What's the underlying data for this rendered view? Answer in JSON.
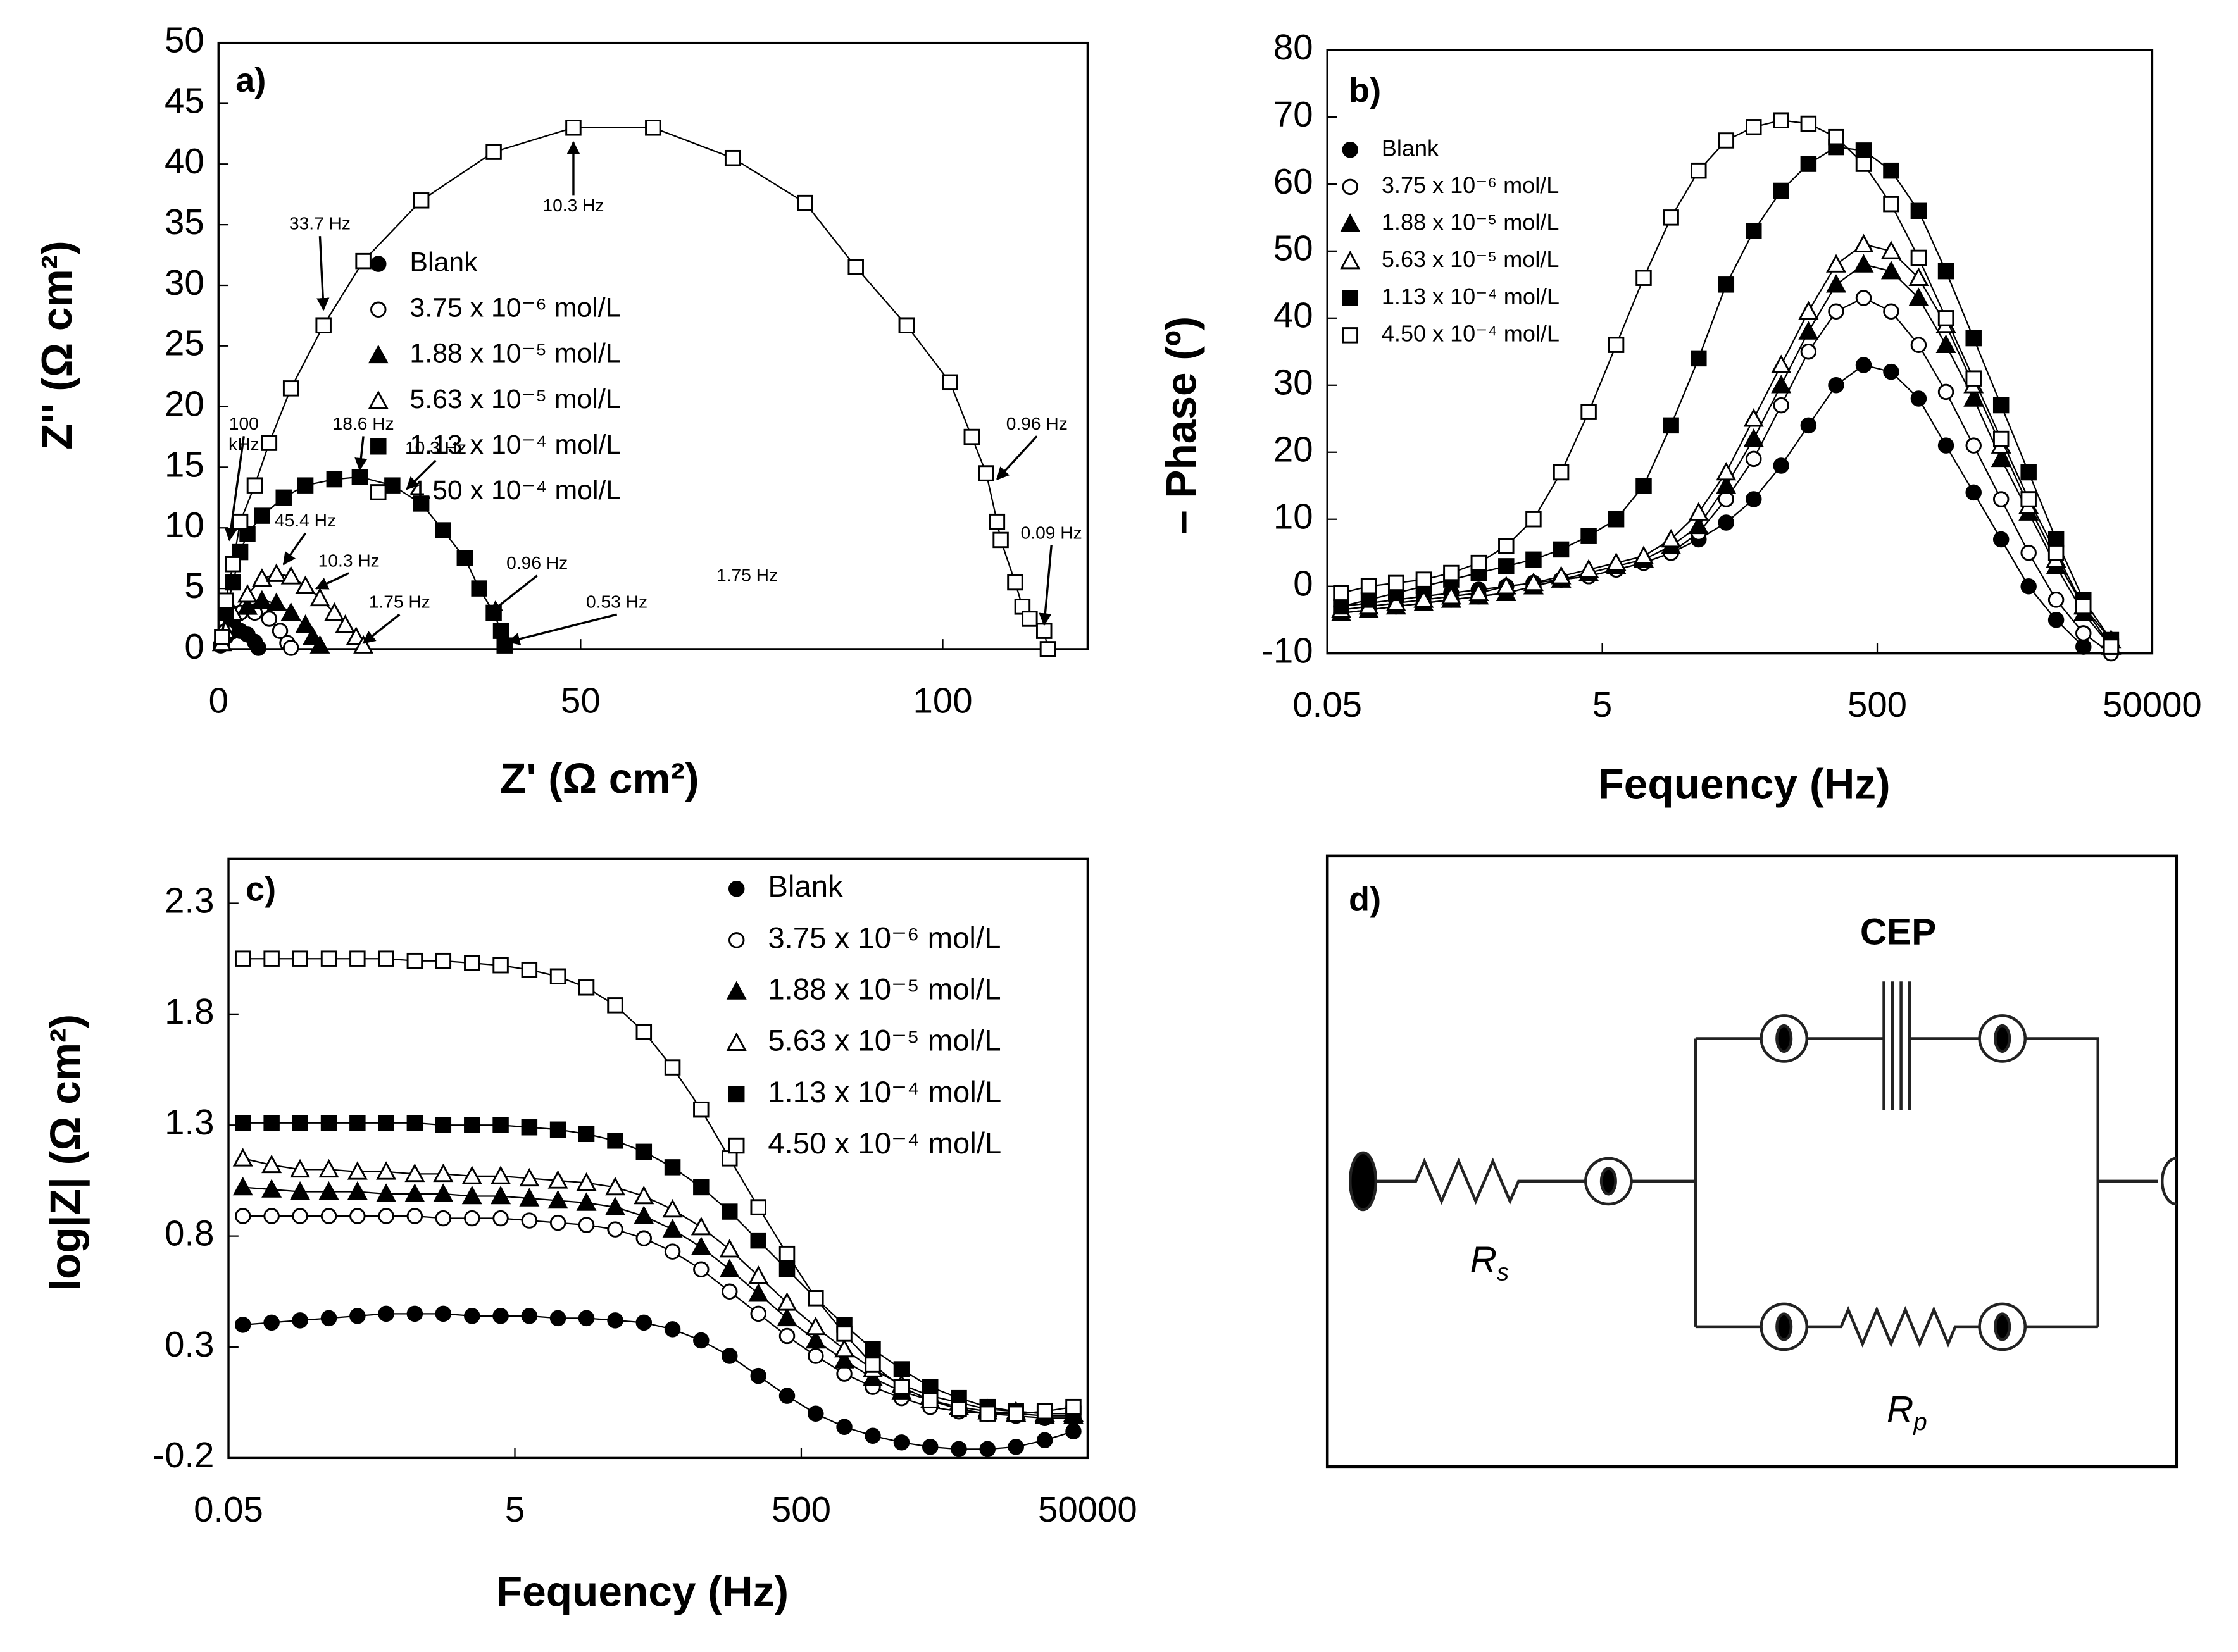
{
  "chart_data": [
    {
      "type": "scatter",
      "label": "a)",
      "xlabel": "Z' (Ω cm²)",
      "ylabel": "Z'' (Ω cm²)",
      "xlim": [
        0,
        120
      ],
      "xticks": [
        0,
        50,
        100
      ],
      "ylim": [
        0,
        50
      ],
      "yticks": [
        0,
        5,
        10,
        15,
        20,
        25,
        30,
        35,
        40,
        45,
        50
      ],
      "legend": "center",
      "series": [
        {
          "name": "Blank",
          "marker": "filled-circle",
          "color": "#000000",
          "x": [
            0.3,
            1,
            2,
            3,
            4,
            5,
            5.5
          ],
          "values": [
            0.3,
            1,
            1.5,
            1.5,
            1.2,
            0.6,
            0.1
          ]
        },
        {
          "name": "3.75 x 10⁻⁶ mol/L",
          "marker": "open-circle",
          "color": "#000000",
          "x": [
            0.5,
            1,
            2,
            3,
            5,
            7,
            8.5,
            9.5,
            10
          ],
          "values": [
            0.5,
            1.5,
            2.5,
            3,
            3,
            2.5,
            1.5,
            0.5,
            0.1
          ]
        },
        {
          "name": "1.88 x 10⁻⁵ mol/L",
          "marker": "filled-triangle",
          "color": "#000000",
          "x": [
            0.5,
            1,
            2,
            4,
            6,
            8,
            10,
            12,
            13,
            14
          ],
          "values": [
            0.5,
            1.5,
            2.5,
            3.5,
            4,
            3.8,
            3,
            2,
            1,
            0.3
          ]
        },
        {
          "name": "5.63 x 10⁻⁵ mol/L",
          "marker": "open-triangle",
          "color": "#000000",
          "x": [
            0.5,
            1,
            2,
            4,
            6,
            8,
            10,
            12,
            14,
            16,
            17.5,
            19,
            20
          ],
          "values": [
            0.5,
            1.5,
            3,
            4.5,
            5.8,
            6.2,
            6,
            5.2,
            4.2,
            3,
            2,
            1,
            0.3
          ]
        },
        {
          "name": "1.13 x 10⁻⁴ mol/L",
          "marker": "filled-square",
          "color": "#000000",
          "x": [
            0.5,
            1,
            2,
            3,
            4,
            6,
            9,
            12,
            16,
            19.5,
            24,
            28,
            31,
            34,
            36,
            38,
            39,
            39.5
          ],
          "values": [
            1,
            3,
            5.5,
            8,
            9.5,
            11,
            12.5,
            13.5,
            14,
            14.2,
            13.5,
            12,
            9.8,
            7.5,
            5,
            3,
            1.5,
            0.3
          ]
        },
        {
          "name": "4.50 x 10⁻⁴ mol/L",
          "marker": "open-square",
          "color": "#000000",
          "x": [
            0.5,
            1,
            2,
            3,
            5,
            7,
            10,
            14.5,
            20,
            28,
            38,
            49,
            60,
            71,
            81,
            88,
            95,
            101,
            104,
            106,
            107.5,
            108,
            110,
            111,
            112,
            114,
            114.5
          ],
          "values": [
            1,
            4,
            7,
            10.5,
            13.5,
            17,
            21.5,
            26.7,
            32,
            37,
            41,
            43,
            43,
            40.5,
            36.8,
            31.5,
            26.7,
            22,
            17.5,
            14.5,
            10.5,
            9,
            5.5,
            3.5,
            2.5,
            1.5,
            0
          ]
        }
      ],
      "annotations": [
        {
          "text": "10.3  Hz",
          "x": 49,
          "y": 36.5,
          "arrow_to": [
            49,
            41.8
          ]
        },
        {
          "text": "33.7  Hz",
          "x": 14,
          "y": 35,
          "arrow_to": [
            14.5,
            28
          ]
        },
        {
          "text": "100",
          "x": 3.5,
          "y": 18.5,
          "arrow_to": [
            1.5,
            9
          ]
        },
        {
          "text": "kHz",
          "x": 3.5,
          "y": 16.8
        },
        {
          "text": "18.6  Hz",
          "x": 20,
          "y": 18.5,
          "arrow_to": [
            19.5,
            14.8
          ]
        },
        {
          "text": "10.3  Hz",
          "x": 30,
          "y": 16.5,
          "arrow_to": [
            26,
            13.2
          ]
        },
        {
          "text": "45.4  Hz",
          "x": 12,
          "y": 10.5,
          "arrow_to": [
            9,
            7
          ]
        },
        {
          "text": "10.3  Hz",
          "x": 18,
          "y": 7.2,
          "arrow_to": [
            13.5,
            5
          ]
        },
        {
          "text": "1.75  Hz",
          "x": 25,
          "y": 3.8,
          "arrow_to": [
            20,
            0.5
          ]
        },
        {
          "text": "0.96  Hz",
          "x": 44,
          "y": 7,
          "arrow_to": [
            37.5,
            3
          ]
        },
        {
          "text": "0.53  Hz",
          "x": 55,
          "y": 3.8,
          "arrow_to": [
            40,
            0.6
          ]
        },
        {
          "text": "1.75  Hz",
          "x": 73,
          "y": 6
        },
        {
          "text": "0.96  Hz",
          "x": 113,
          "y": 18.5,
          "arrow_to": [
            107.5,
            14
          ]
        },
        {
          "text": "0.09  Hz",
          "x": 115,
          "y": 9.5,
          "arrow_to": [
            114,
            2
          ]
        }
      ]
    },
    {
      "type": "scatter",
      "label": "b)",
      "xlabel": "Fequency (Hz)",
      "ylabel": "– Phase (º)",
      "xscale": "log",
      "xlim": [
        0.05,
        50000
      ],
      "xticks": [
        0.05,
        5,
        500,
        50000
      ],
      "ylim": [
        -10,
        80
      ],
      "yticks": [
        -10,
        0,
        10,
        20,
        30,
        40,
        50,
        60,
        70,
        80
      ],
      "legend": "upper left",
      "x": [
        0.063,
        0.1,
        0.158,
        0.251,
        0.398,
        0.631,
        1,
        1.58,
        2.51,
        3.98,
        6.31,
        10,
        15.8,
        25.1,
        39.8,
        63.1,
        100,
        158,
        251,
        398,
        631,
        1000,
        1580,
        2510,
        3980,
        6310,
        10000,
        15800,
        25100
      ],
      "series": [
        {
          "name": "Blank",
          "marker": "filled-circle",
          "color": "#000000",
          "values": [
            -3,
            -2.5,
            -2,
            -1.5,
            -1,
            -0.5,
            0,
            0.5,
            1,
            1.5,
            2.5,
            3.5,
            5,
            7,
            9.5,
            13,
            18,
            24,
            30,
            33,
            32,
            28,
            21,
            14,
            7,
            0,
            -5,
            -9,
            null
          ]
        },
        {
          "name": "3.75 x 10⁻⁶ mol/L",
          "marker": "open-circle",
          "color": "#000000",
          "values": [
            -4,
            -3.5,
            -3,
            -2.5,
            -2,
            -1.5,
            -1,
            0,
            1,
            1.5,
            2.5,
            3.5,
            5,
            8,
            13,
            19,
            27,
            35,
            41,
            43,
            41,
            36,
            29,
            21,
            13,
            5,
            -2,
            -7,
            -10
          ]
        },
        {
          "name": "1.88 x 10⁻⁵ mol/L",
          "marker": "filled-triangle",
          "color": "#000000",
          "values": [
            -4,
            -3.5,
            -3,
            -2.5,
            -2,
            -1.5,
            -1,
            0,
            1,
            2,
            3,
            4,
            6,
            9,
            15,
            22,
            30,
            38,
            45,
            48,
            47,
            43,
            36,
            28,
            19,
            11,
            3,
            -4,
            -9
          ]
        },
        {
          "name": "5.63 x 10⁻⁵ mol/L",
          "marker": "open-triangle",
          "color": "#000000",
          "values": [
            -3.5,
            -3,
            -2.5,
            -2,
            -1.5,
            -1,
            0,
            0.5,
            1.5,
            2.5,
            3.5,
            4.5,
            7,
            11,
            17,
            25,
            33,
            41,
            48,
            51,
            50,
            46,
            39,
            30,
            21,
            12,
            4,
            -3,
            -8
          ]
        },
        {
          "name": "1.13 x 10⁻⁴ mol/L",
          "marker": "filled-square",
          "color": "#000000",
          "values": [
            -3,
            -2,
            -1,
            0,
            1,
            2,
            3,
            4,
            5.5,
            7.5,
            10,
            15,
            24,
            34,
            45,
            53,
            59,
            63,
            65.5,
            65,
            62,
            56,
            47,
            37,
            27,
            17,
            7,
            -2,
            -8
          ]
        },
        {
          "name": "4.50 x 10⁻⁴ mol/L",
          "marker": "open-square",
          "color": "#000000",
          "values": [
            -1,
            0,
            0.5,
            1,
            2,
            3.5,
            6,
            10,
            17,
            26,
            36,
            46,
            55,
            62,
            66.5,
            68.5,
            69.5,
            69,
            67,
            63,
            57,
            49,
            40,
            31,
            22,
            13,
            5,
            -3,
            -9
          ]
        }
      ]
    },
    {
      "type": "scatter",
      "label": "c)",
      "xlabel": "Fequency (Hz)",
      "ylabel": "log|Z|  (Ω cm²)",
      "xscale": "log",
      "xlim": [
        0.05,
        50000
      ],
      "xticks": [
        0.05,
        5,
        500,
        50000
      ],
      "ylim": [
        -0.2,
        2.5
      ],
      "yticks": [
        -0.2,
        0.3,
        0.8,
        1.3,
        1.8,
        2.3
      ],
      "legend": "upper right",
      "x": [
        0.063,
        0.1,
        0.158,
        0.251,
        0.398,
        0.631,
        1,
        1.58,
        2.51,
        3.98,
        6.31,
        10,
        15.8,
        25.1,
        39.8,
        63.1,
        100,
        158,
        251,
        398,
        631,
        1000,
        1580,
        2510,
        3980,
        6310,
        10000,
        15800,
        25100,
        39800
      ],
      "series": [
        {
          "name": "Blank",
          "marker": "filled-circle",
          "color": "#000000",
          "values": [
            0.4,
            0.41,
            0.42,
            0.43,
            0.44,
            0.45,
            0.45,
            0.45,
            0.44,
            0.44,
            0.44,
            0.43,
            0.43,
            0.42,
            0.41,
            0.38,
            0.33,
            0.26,
            0.17,
            0.08,
            0.0,
            -0.06,
            -0.1,
            -0.13,
            -0.15,
            -0.16,
            -0.16,
            -0.15,
            -0.12,
            -0.08
          ]
        },
        {
          "name": "3.75 x 10⁻⁶ mol/L",
          "marker": "open-circle",
          "color": "#000000",
          "values": [
            0.89,
            0.89,
            0.89,
            0.89,
            0.89,
            0.89,
            0.89,
            0.88,
            0.88,
            0.88,
            0.87,
            0.86,
            0.85,
            0.83,
            0.79,
            0.73,
            0.65,
            0.55,
            0.45,
            0.35,
            0.26,
            0.18,
            0.12,
            0.07,
            0.03,
            0.01,
            0.0,
            -0.01,
            -0.02,
            -0.02
          ]
        },
        {
          "name": "1.88 x 10⁻⁵ mol/L",
          "marker": "filled-triangle",
          "color": "#000000",
          "values": [
            1.02,
            1.01,
            1.0,
            1.0,
            1.0,
            0.99,
            0.99,
            0.99,
            0.98,
            0.98,
            0.97,
            0.96,
            0.95,
            0.93,
            0.89,
            0.83,
            0.75,
            0.65,
            0.54,
            0.43,
            0.33,
            0.24,
            0.16,
            0.1,
            0.06,
            0.03,
            0.01,
            0.0,
            -0.01,
            -0.01
          ]
        },
        {
          "name": "5.63 x 10⁻⁵ mol/L",
          "marker": "open-triangle",
          "color": "#000000",
          "values": [
            1.15,
            1.12,
            1.1,
            1.1,
            1.09,
            1.09,
            1.08,
            1.08,
            1.07,
            1.07,
            1.06,
            1.05,
            1.04,
            1.02,
            0.98,
            0.92,
            0.84,
            0.74,
            0.62,
            0.5,
            0.39,
            0.29,
            0.2,
            0.13,
            0.08,
            0.05,
            0.02,
            0.01,
            0.0,
            0.0
          ]
        },
        {
          "name": "1.13 x 10⁻⁴ mol/L",
          "marker": "filled-square",
          "color": "#000000",
          "values": [
            1.31,
            1.31,
            1.31,
            1.31,
            1.31,
            1.31,
            1.31,
            1.3,
            1.3,
            1.3,
            1.29,
            1.28,
            1.26,
            1.23,
            1.18,
            1.11,
            1.02,
            0.91,
            0.78,
            0.65,
            0.52,
            0.4,
            0.29,
            0.2,
            0.12,
            0.07,
            0.03,
            0.01,
            0.0,
            0.0
          ]
        },
        {
          "name": "4.50 x 10⁻⁴ mol/L",
          "marker": "open-square",
          "color": "#000000",
          "values": [
            2.05,
            2.05,
            2.05,
            2.05,
            2.05,
            2.05,
            2.04,
            2.04,
            2.03,
            2.02,
            2.0,
            1.97,
            1.92,
            1.84,
            1.72,
            1.56,
            1.37,
            1.15,
            0.93,
            0.72,
            0.52,
            0.36,
            0.22,
            0.12,
            0.06,
            0.02,
            0.0,
            0.0,
            0.01,
            0.03
          ]
        }
      ]
    }
  ],
  "diagram": {
    "label": "d)",
    "capacitor": "CEP",
    "rs": {
      "symbol": "R",
      "sub": "s"
    },
    "rp": {
      "symbol": "R",
      "sub": "p"
    }
  }
}
